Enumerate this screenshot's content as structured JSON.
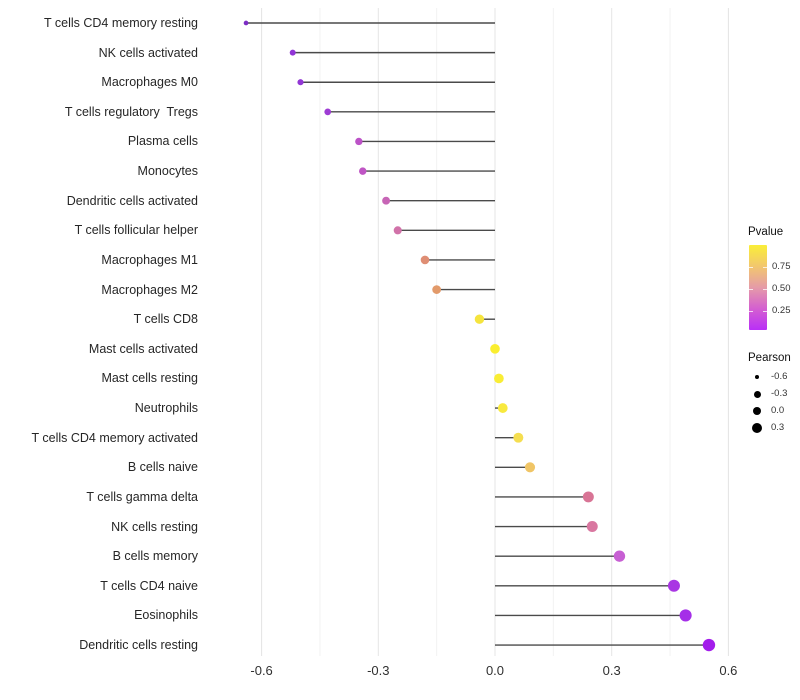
{
  "chart_data": {
    "type": "scatter",
    "variant": "horizontal-lollipop",
    "title": "",
    "xlabel": "",
    "ylabel": "",
    "xlim": [
      -0.75,
      0.63
    ],
    "grid": true,
    "x_ticks_major": [
      -0.6,
      -0.3,
      0.0,
      0.3,
      0.6
    ],
    "x_tick_labels": [
      "-0.6",
      "-0.3",
      "0.0",
      "0.3",
      "0.6"
    ],
    "x_ticks_minor": [
      -0.45,
      -0.15,
      0.15,
      0.45
    ],
    "categories": [
      "T cells CD4 memory resting",
      "NK cells activated",
      "Macrophages M0",
      "T cells regulatory  Tregs",
      "Plasma cells",
      "Monocytes",
      "Dendritic cells activated",
      "T cells follicular helper",
      "Macrophages M1",
      "Macrophages M2",
      "T cells CD8",
      "Mast cells activated",
      "Mast cells resting",
      "Neutrophils",
      "T cells CD4 memory activated",
      "B cells naive",
      "T cells gamma delta",
      "NK cells resting",
      "B cells memory",
      "T cells CD4 naive",
      "Eosinophils",
      "Dendritic cells resting"
    ],
    "series": [
      {
        "name": "Pearson",
        "values": [
          -0.64,
          -0.52,
          -0.5,
          -0.43,
          -0.35,
          -0.34,
          -0.28,
          -0.25,
          -0.18,
          -0.15,
          -0.04,
          0.0,
          0.01,
          0.02,
          0.06,
          0.09,
          0.24,
          0.25,
          0.32,
          0.46,
          0.49,
          0.55
        ]
      }
    ],
    "pvalue_approx": [
      0.01,
      0.04,
      0.05,
      0.08,
      0.17,
      0.18,
      0.26,
      0.31,
      0.55,
      0.6,
      0.92,
      0.97,
      0.96,
      0.93,
      0.85,
      0.72,
      0.42,
      0.4,
      0.2,
      0.06,
      0.05,
      0.03
    ],
    "point_colors": [
      "#7C2DC4",
      "#9134D6",
      "#9237D5",
      "#9E3CD4",
      "#BC52C7",
      "#BF55C4",
      "#C765B6",
      "#D172A9",
      "#DF8E74",
      "#E29A6A",
      "#F5E43E",
      "#FAEE2F",
      "#F9ED35",
      "#F8E93E",
      "#F5DE50",
      "#F0C566",
      "#D87495",
      "#D977A0",
      "#C75FD3",
      "#A936E3",
      "#A52FE8",
      "#A31DEB"
    ],
    "segment_color": "#4A4A4A",
    "grid_major_color": "#E4E4E4",
    "grid_minor_color": "#F2F2F2",
    "legends": {
      "pvalue": {
        "title": "Pvalue",
        "tick_labels": [
          "0.75",
          "0.50",
          "0.25"
        ],
        "tick_values": [
          0.75,
          0.5,
          0.25
        ],
        "gradient_top_to_bottom": [
          "#FAEE38",
          "#F2C76E",
          "#E59BA8",
          "#D45FD0",
          "#B92FF7"
        ],
        "range_bottom_to_top": [
          0.03,
          1.0
        ]
      },
      "pearson": {
        "title": "Pearson",
        "entries": [
          {
            "label": "-0.6",
            "diameter": 4.5
          },
          {
            "label": "-0.3",
            "diameter": 7
          },
          {
            "label": "0.0",
            "diameter": 8.5
          },
          {
            "label": "0.3",
            "diameter": 10
          }
        ]
      }
    }
  }
}
